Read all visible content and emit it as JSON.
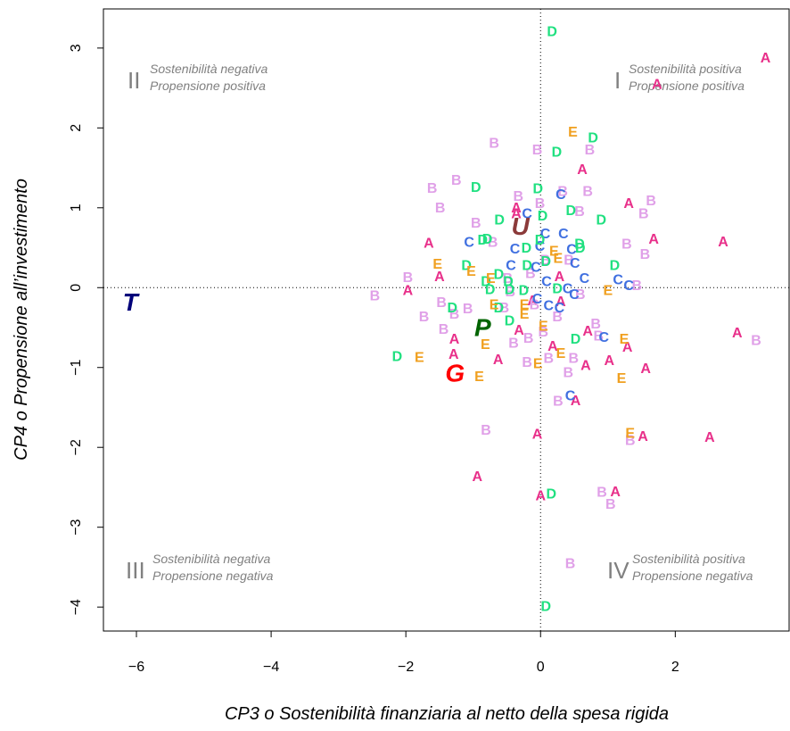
{
  "chart_data": {
    "type": "scatter",
    "xlabel": "CP3 o Sostenibilità finanziaria al netto della spesa rigida",
    "ylabel": "CP4 o Propensione all’investimento",
    "xlim": [
      -6.49,
      3.69
    ],
    "ylim": [
      -4.3,
      3.49
    ],
    "xticks": [
      {
        "value": -6,
        "label": "−6"
      },
      {
        "value": -4,
        "label": "−4"
      },
      {
        "value": -2,
        "label": "−2"
      },
      0,
      2
    ],
    "yticks": [
      {
        "value": -4,
        "label": "−4"
      },
      {
        "value": -3,
        "label": "−3"
      },
      {
        "value": -2,
        "label": "−2"
      },
      {
        "value": -1,
        "label": "−1"
      },
      0,
      1,
      2,
      3
    ],
    "reference_lines": true,
    "series": [
      {
        "name": "A",
        "color": "#e8308a",
        "x": [
          3.34,
          1.73,
          0.62,
          1.31,
          1.68,
          2.71,
          -1.66,
          -1.5,
          -1.97,
          -0.36,
          -1.28,
          -1.29,
          -0.63,
          -0.12,
          0.3,
          0.7,
          1.29,
          1.02,
          1.56,
          0.67,
          0.18,
          -0.05,
          1.52,
          2.51,
          -0.94,
          1.11,
          0,
          2.92,
          0.52,
          -0.32,
          -0.36,
          0.28
        ],
        "values": [
          2.87,
          2.54,
          1.47,
          1.05,
          0.6,
          0.57,
          0.55,
          0.13,
          -0.04,
          0.99,
          -0.65,
          -0.84,
          -0.91,
          -0.17,
          -0.18,
          -0.55,
          -0.75,
          -0.92,
          -1.02,
          -0.98,
          -0.74,
          -1.84,
          -1.87,
          -1.88,
          -2.37,
          -2.56,
          -2.61,
          -0.57,
          -1.42,
          -0.54,
          0.92,
          0.13
        ]
      },
      {
        "name": "B",
        "color": "#e0a0e8",
        "x": [
          -0.69,
          -0.05,
          0.73,
          -1.61,
          -1.25,
          -1.49,
          -0.33,
          -0.01,
          0.33,
          0.7,
          1.64,
          1.53,
          -0.96,
          -0.71,
          0.58,
          1.28,
          1.55,
          -1.97,
          -2.46,
          -1.73,
          -1.47,
          -1.28,
          -1.08,
          -1.44,
          -0.45,
          -0.54,
          -0.49,
          -0.15,
          0.07,
          0.42,
          0.25,
          0.59,
          -0.4,
          -0.18,
          0.04,
          0.82,
          0.86,
          0.49,
          0.12,
          -0.2,
          0.41,
          0.26,
          -0.81,
          1.33,
          1.04,
          0.91,
          0.44,
          3.2,
          1.43,
          -0.09
        ],
        "values": [
          1.8,
          1.72,
          1.72,
          1.24,
          1.34,
          0.99,
          1.14,
          1.05,
          1.2,
          1.2,
          1.08,
          0.92,
          0.8,
          0.56,
          0.95,
          0.54,
          0.41,
          0.12,
          -0.11,
          -0.37,
          -0.19,
          -0.34,
          -0.27,
          -0.53,
          -0.06,
          -0.26,
          0.11,
          0.17,
          0.34,
          0.34,
          -0.37,
          -0.09,
          -0.7,
          -0.64,
          -0.56,
          -0.46,
          -0.61,
          -0.89,
          -0.89,
          -0.94,
          -1.07,
          -1.43,
          -1.79,
          -1.92,
          -2.72,
          -2.57,
          -3.46,
          -0.67,
          0.02,
          -0.22
        ]
      },
      {
        "name": "C",
        "color": "#4070e0",
        "x": [
          0.3,
          -0.2,
          0.07,
          -0.01,
          0.34,
          -1.06,
          -0.38,
          0.46,
          0.51,
          -0.44,
          -0.07,
          0.09,
          0.65,
          1.15,
          1.31,
          0.4,
          0.5,
          -0.05,
          0.12,
          0.28,
          0.94,
          0.44
        ],
        "values": [
          1.16,
          0.92,
          0.67,
          0.51,
          0.67,
          0.56,
          0.48,
          0.47,
          0.3,
          0.27,
          0.25,
          0.07,
          0.11,
          0.09,
          0.02,
          -0.02,
          -0.09,
          -0.15,
          -0.23,
          -0.26,
          -0.63,
          -1.36
        ]
      },
      {
        "name": "D",
        "color": "#20e080",
        "x": [
          0.17,
          0.78,
          0.24,
          -0.96,
          -0.04,
          0.45,
          0.9,
          -0.61,
          0.03,
          -0.86,
          -0.79,
          -0.21,
          -0.01,
          0.58,
          0.59,
          -1.1,
          -0.62,
          -0.81,
          -0.48,
          -0.2,
          0.08,
          1.1,
          -0.75,
          -0.46,
          -0.25,
          0.25,
          -1.31,
          -0.46,
          0.52,
          -2.13,
          0.16,
          0.08,
          -0.62
        ],
        "values": [
          3.2,
          1.87,
          1.69,
          1.25,
          1.23,
          0.96,
          0.84,
          0.84,
          0.89,
          0.59,
          0.6,
          0.49,
          0.59,
          0.54,
          0.49,
          0.27,
          0.16,
          0.07,
          0.07,
          0.27,
          0.32,
          0.27,
          -0.03,
          -0.03,
          -0.04,
          -0.02,
          -0.26,
          -0.42,
          -0.65,
          -0.87,
          -2.59,
          -4,
          -0.26
        ]
      },
      {
        "name": "E",
        "color": "#f0a020",
        "x": [
          0.48,
          -1.53,
          -1.03,
          -0.74,
          0.2,
          0.26,
          1,
          -0.24,
          -0.24,
          0.04,
          -0.82,
          1.24,
          0.3,
          -0.04,
          -1.8,
          -0.91,
          1.2,
          1.33,
          -0.69
        ],
        "values": [
          1.94,
          0.29,
          0.2,
          0.11,
          0.45,
          0.36,
          -0.04,
          -0.22,
          -0.34,
          -0.49,
          -0.72,
          -0.65,
          -0.83,
          -0.96,
          -0.88,
          -1.12,
          -1.14,
          -1.83,
          -0.22
        ]
      },
      {
        "name": "T",
        "color": "#00007a",
        "emphasis": true,
        "x": [
          -6.09
        ],
        "values": [
          -0.18
        ]
      },
      {
        "name": "G",
        "color": "#ff0000",
        "emphasis": true,
        "x": [
          -1.27
        ],
        "values": [
          -1.07
        ]
      },
      {
        "name": "P",
        "color": "#006400",
        "emphasis": true,
        "x": [
          -0.86
        ],
        "values": [
          -0.5
        ]
      },
      {
        "name": "U",
        "color": "#8b3a3a",
        "emphasis": true,
        "x": [
          -0.3
        ],
        "values": [
          0.77
        ]
      }
    ]
  },
  "quadrants": [
    {
      "numeral": "I",
      "lines": [
        "Sostenibilità positiva",
        "Propensione positiva"
      ]
    },
    {
      "numeral": "II",
      "lines": [
        "Sostenibilità negativa",
        "Propensione positiva"
      ]
    },
    {
      "numeral": "III",
      "lines": [
        "Sostenibilità negativa",
        "Propensione negativa"
      ]
    },
    {
      "numeral": "IV",
      "lines": [
        "Sostenibilità positiva",
        "Propensione negativa"
      ]
    }
  ]
}
